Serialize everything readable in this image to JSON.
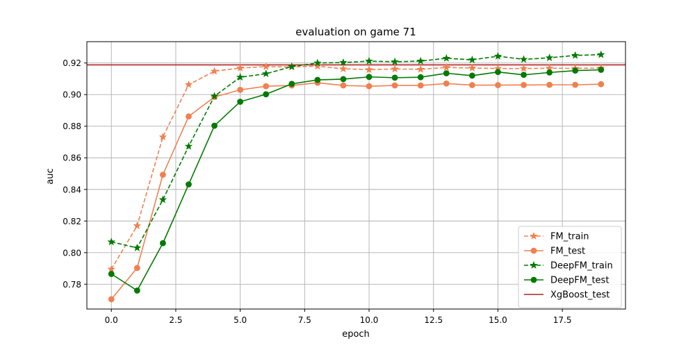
{
  "chart_data": {
    "type": "line",
    "title": "evaluation on game 71",
    "xlabel": "epoch",
    "ylabel": "auc",
    "xlim": [
      -0.95,
      19.95
    ],
    "ylim": [
      0.7643,
      0.9335
    ],
    "x_ticks": [
      0.0,
      2.5,
      5.0,
      7.5,
      10.0,
      12.5,
      15.0,
      17.5
    ],
    "x_tick_labels": [
      "0.0",
      "2.5",
      "5.0",
      "7.5",
      "10.0",
      "12.5",
      "15.0",
      "17.5"
    ],
    "y_ticks": [
      0.78,
      0.8,
      0.82,
      0.84,
      0.86,
      0.88,
      0.9,
      0.92
    ],
    "y_tick_labels": [
      "0.78",
      "0.80",
      "0.82",
      "0.84",
      "0.86",
      "0.88",
      "0.90",
      "0.92"
    ],
    "grid": true,
    "legend_position": "lower-right",
    "x": [
      0,
      1,
      2,
      3,
      4,
      5,
      6,
      7,
      8,
      9,
      10,
      11,
      12,
      13,
      14,
      15,
      16,
      17,
      18,
      19
    ],
    "series": [
      {
        "name": "FM_train",
        "color": "#f08050",
        "line_style": "dashed",
        "marker": "star",
        "values": [
          0.7895,
          0.817,
          0.8732,
          0.9063,
          0.9148,
          0.9168,
          0.9177,
          0.9175,
          0.918,
          0.9163,
          0.9158,
          0.9162,
          0.916,
          0.9172,
          0.9168,
          0.9165,
          0.9165,
          0.9167,
          0.9166,
          0.9168
        ]
      },
      {
        "name": "FM_test",
        "color": "#f08050",
        "line_style": "solid",
        "marker": "circle",
        "values": [
          0.7705,
          0.7903,
          0.8493,
          0.8862,
          0.8985,
          0.903,
          0.9053,
          0.9058,
          0.9075,
          0.9058,
          0.9053,
          0.9058,
          0.9058,
          0.907,
          0.906,
          0.906,
          0.9061,
          0.9062,
          0.9062,
          0.9066
        ]
      },
      {
        "name": "DeepFM_train",
        "color": "#007a00",
        "line_style": "dashed",
        "marker": "star",
        "values": [
          0.8068,
          0.803,
          0.8335,
          0.8673,
          0.899,
          0.911,
          0.9132,
          0.9177,
          0.92,
          0.9203,
          0.9212,
          0.9208,
          0.9212,
          0.923,
          0.922,
          0.9243,
          0.9223,
          0.9233,
          0.9248,
          0.9253
        ]
      },
      {
        "name": "DeepFM_test",
        "color": "#007a00",
        "line_style": "solid",
        "marker": "circle",
        "values": [
          0.7865,
          0.776,
          0.806,
          0.8432,
          0.8803,
          0.8955,
          0.9002,
          0.9068,
          0.9093,
          0.9098,
          0.9112,
          0.9107,
          0.911,
          0.9135,
          0.912,
          0.9143,
          0.9125,
          0.914,
          0.9152,
          0.9157
        ]
      }
    ],
    "reference_lines": [
      {
        "name": "XgBoost_test",
        "color": "#b22222",
        "y": 0.9188
      }
    ]
  }
}
